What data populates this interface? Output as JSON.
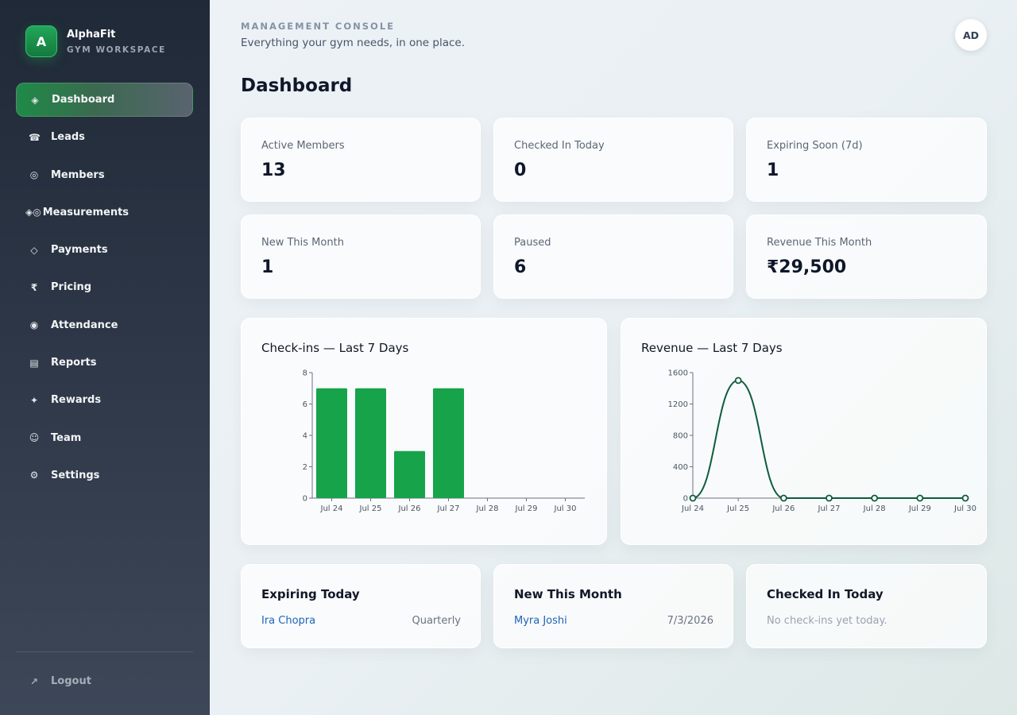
{
  "brand": {
    "logo_letter": "A",
    "name": "AlphaFit",
    "subtitle": "GYM WORKSPACE"
  },
  "sidebar": {
    "items": [
      {
        "label": "Dashboard",
        "icon": "diamond-icon",
        "glyph": "◈",
        "active": true
      },
      {
        "label": "Leads",
        "icon": "phone-icon",
        "glyph": "☎",
        "active": false
      },
      {
        "label": "Members",
        "icon": "ring-icon",
        "glyph": "◎",
        "active": false
      },
      {
        "label": "Measurements",
        "icon": "measure-icon",
        "glyph": "◈◎",
        "active": false
      },
      {
        "label": "Payments",
        "icon": "diamond-outline-icon",
        "glyph": "◇",
        "active": false
      },
      {
        "label": "Pricing",
        "icon": "rupee-icon",
        "glyph": "₹",
        "active": false
      },
      {
        "label": "Attendance",
        "icon": "target-icon",
        "glyph": "◉",
        "active": false
      },
      {
        "label": "Reports",
        "icon": "report-icon",
        "glyph": "▤",
        "active": false
      },
      {
        "label": "Rewards",
        "icon": "star-icon",
        "glyph": "✦",
        "active": false
      },
      {
        "label": "Team",
        "icon": "smiley-icon",
        "glyph": "☺",
        "active": false
      },
      {
        "label": "Settings",
        "icon": "gear-icon",
        "glyph": "⚙",
        "active": false
      }
    ],
    "logout": {
      "label": "Logout",
      "icon": "arrow-out-icon",
      "glyph": "↗"
    }
  },
  "header": {
    "eyebrow": "MANAGEMENT CONSOLE",
    "tagline": "Everything your gym needs, in one place.",
    "avatar_initials": "AD",
    "title": "Dashboard"
  },
  "stats": [
    {
      "label": "Active Members",
      "value": "13"
    },
    {
      "label": "Checked In Today",
      "value": "0"
    },
    {
      "label": "Expiring Soon (7d)",
      "value": "1"
    },
    {
      "label": "New This Month",
      "value": "1"
    },
    {
      "label": "Paused",
      "value": "6"
    },
    {
      "label": "Revenue This Month",
      "value": "₹29,500"
    }
  ],
  "colors": {
    "accent": "#16a34a",
    "line": "#0f5c3c",
    "link": "#1d64b8"
  },
  "chart_data": [
    {
      "type": "bar",
      "title": "Check-ins — Last 7 Days",
      "categories": [
        "Jul 24",
        "Jul 25",
        "Jul 26",
        "Jul 27",
        "Jul 28",
        "Jul 29",
        "Jul 30"
      ],
      "values": [
        7,
        7,
        3,
        7,
        0,
        0,
        0
      ],
      "ylim": [
        0,
        8
      ],
      "yticks": [
        0,
        2,
        4,
        6,
        8
      ],
      "xlabel": "",
      "ylabel": "",
      "grid": false
    },
    {
      "type": "line",
      "title": "Revenue — Last 7 Days",
      "categories": [
        "Jul 24",
        "Jul 25",
        "Jul 26",
        "Jul 27",
        "Jul 28",
        "Jul 29",
        "Jul 30"
      ],
      "values": [
        0,
        1500,
        0,
        0,
        0,
        0,
        0
      ],
      "ylim": [
        0,
        1600
      ],
      "yticks": [
        0,
        400,
        800,
        1200,
        1600
      ],
      "xlabel": "",
      "ylabel": "",
      "grid": false
    }
  ],
  "lists": {
    "expiring_today": {
      "title": "Expiring Today",
      "rows": [
        {
          "name": "Ira Chopra",
          "meta": "Quarterly"
        }
      ]
    },
    "new_this_month": {
      "title": "New This Month",
      "rows": [
        {
          "name": "Myra Joshi",
          "meta": "7/3/2026"
        }
      ]
    },
    "checked_in_today": {
      "title": "Checked In Today",
      "empty": "No check-ins yet today."
    }
  }
}
